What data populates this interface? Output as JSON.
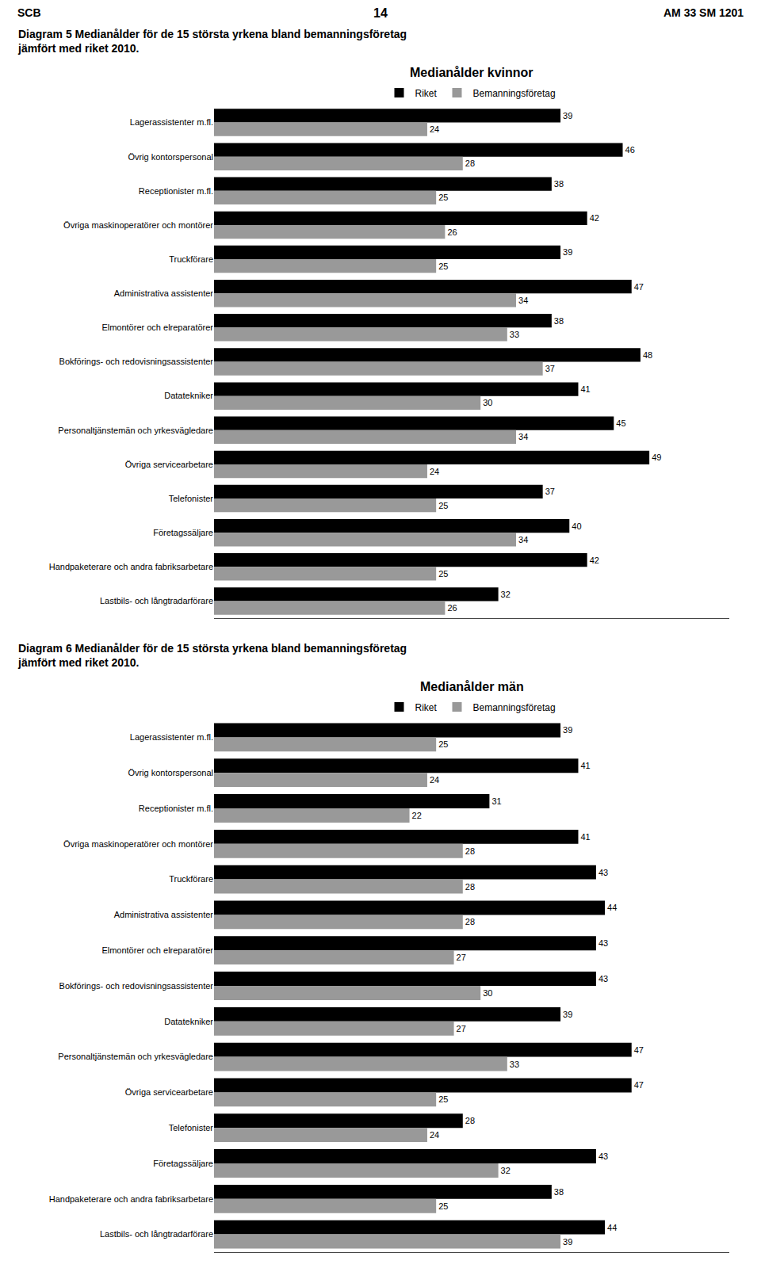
{
  "chart_data": [
    {
      "type": "bar",
      "orientation": "horizontal",
      "annotations": [
        "SCB",
        "14",
        "AM 33 SM 1201"
      ],
      "title": "Diagram 5 Medianålder för de 15 största yrkena bland bemanningsföretag\njämfört med riket 2010.",
      "subtitle": "Medianålder kvinnor",
      "categories": [
        "Lagerassistenter m.fl.",
        "Övrig kontorspersonal",
        "Receptionister m.fl.",
        "Övriga maskinoperatörer och montörer",
        "Truckförare",
        "Administrativa assistenter",
        "Elmontörer och elreparatörer",
        "Bokförings- och redovisningsassistenter",
        "Datatekniker",
        "Personaltjänstemän och yrkesvägledare",
        "Övriga servicearbetare",
        "Telefonister",
        "Företagssäljare",
        "Handpaketerare och andra fabriksarbetare",
        "Lastbils- och långtradarförare"
      ],
      "series": [
        {
          "name": "Riket",
          "color": "#000000",
          "values": [
            39,
            46,
            38,
            42,
            39,
            47,
            38,
            48,
            41,
            45,
            49,
            37,
            40,
            42,
            32
          ]
        },
        {
          "name": "Bemanningsföretag",
          "color": "#999999",
          "values": [
            24,
            28,
            25,
            26,
            25,
            34,
            33,
            37,
            30,
            34,
            24,
            25,
            34,
            25,
            26
          ]
        }
      ],
      "xlim": [
        0,
        58
      ],
      "grid": false,
      "legend": "top",
      "data_labels": true,
      "tick_labels": "y"
    },
    {
      "type": "bar",
      "orientation": "horizontal",
      "title": "Diagram 6 Medianålder för de 15 största yrkena bland bemanningsföretag\njämfört med riket 2010.",
      "subtitle": "Medianålder män",
      "categories": [
        "Lagerassistenter m.fl.",
        "Övrig kontorspersonal",
        "Receptionister m.fl.",
        "Övriga maskinoperatörer och montörer",
        "Truckförare",
        "Administrativa assistenter",
        "Elmontörer och elreparatörer",
        "Bokförings- och redovisningsassistenter",
        "Datatekniker",
        "Personaltjänstemän och yrkesvägledare",
        "Övriga servicearbetare",
        "Telefonister",
        "Företagssäljare",
        "Handpaketerare och andra fabriksarbetare",
        "Lastbils- och långtradarförare"
      ],
      "series": [
        {
          "name": "Riket",
          "color": "#000000",
          "values": [
            39,
            41,
            31,
            41,
            43,
            44,
            43,
            43,
            39,
            47,
            47,
            28,
            43,
            38,
            44
          ]
        },
        {
          "name": "Bemanningsföretag",
          "color": "#999999",
          "values": [
            25,
            24,
            22,
            28,
            28,
            28,
            27,
            30,
            27,
            33,
            25,
            24,
            32,
            25,
            39
          ]
        }
      ],
      "xlim": [
        0,
        58
      ],
      "grid": false,
      "legend": "top",
      "data_labels": true,
      "tick_labels": "y"
    }
  ]
}
